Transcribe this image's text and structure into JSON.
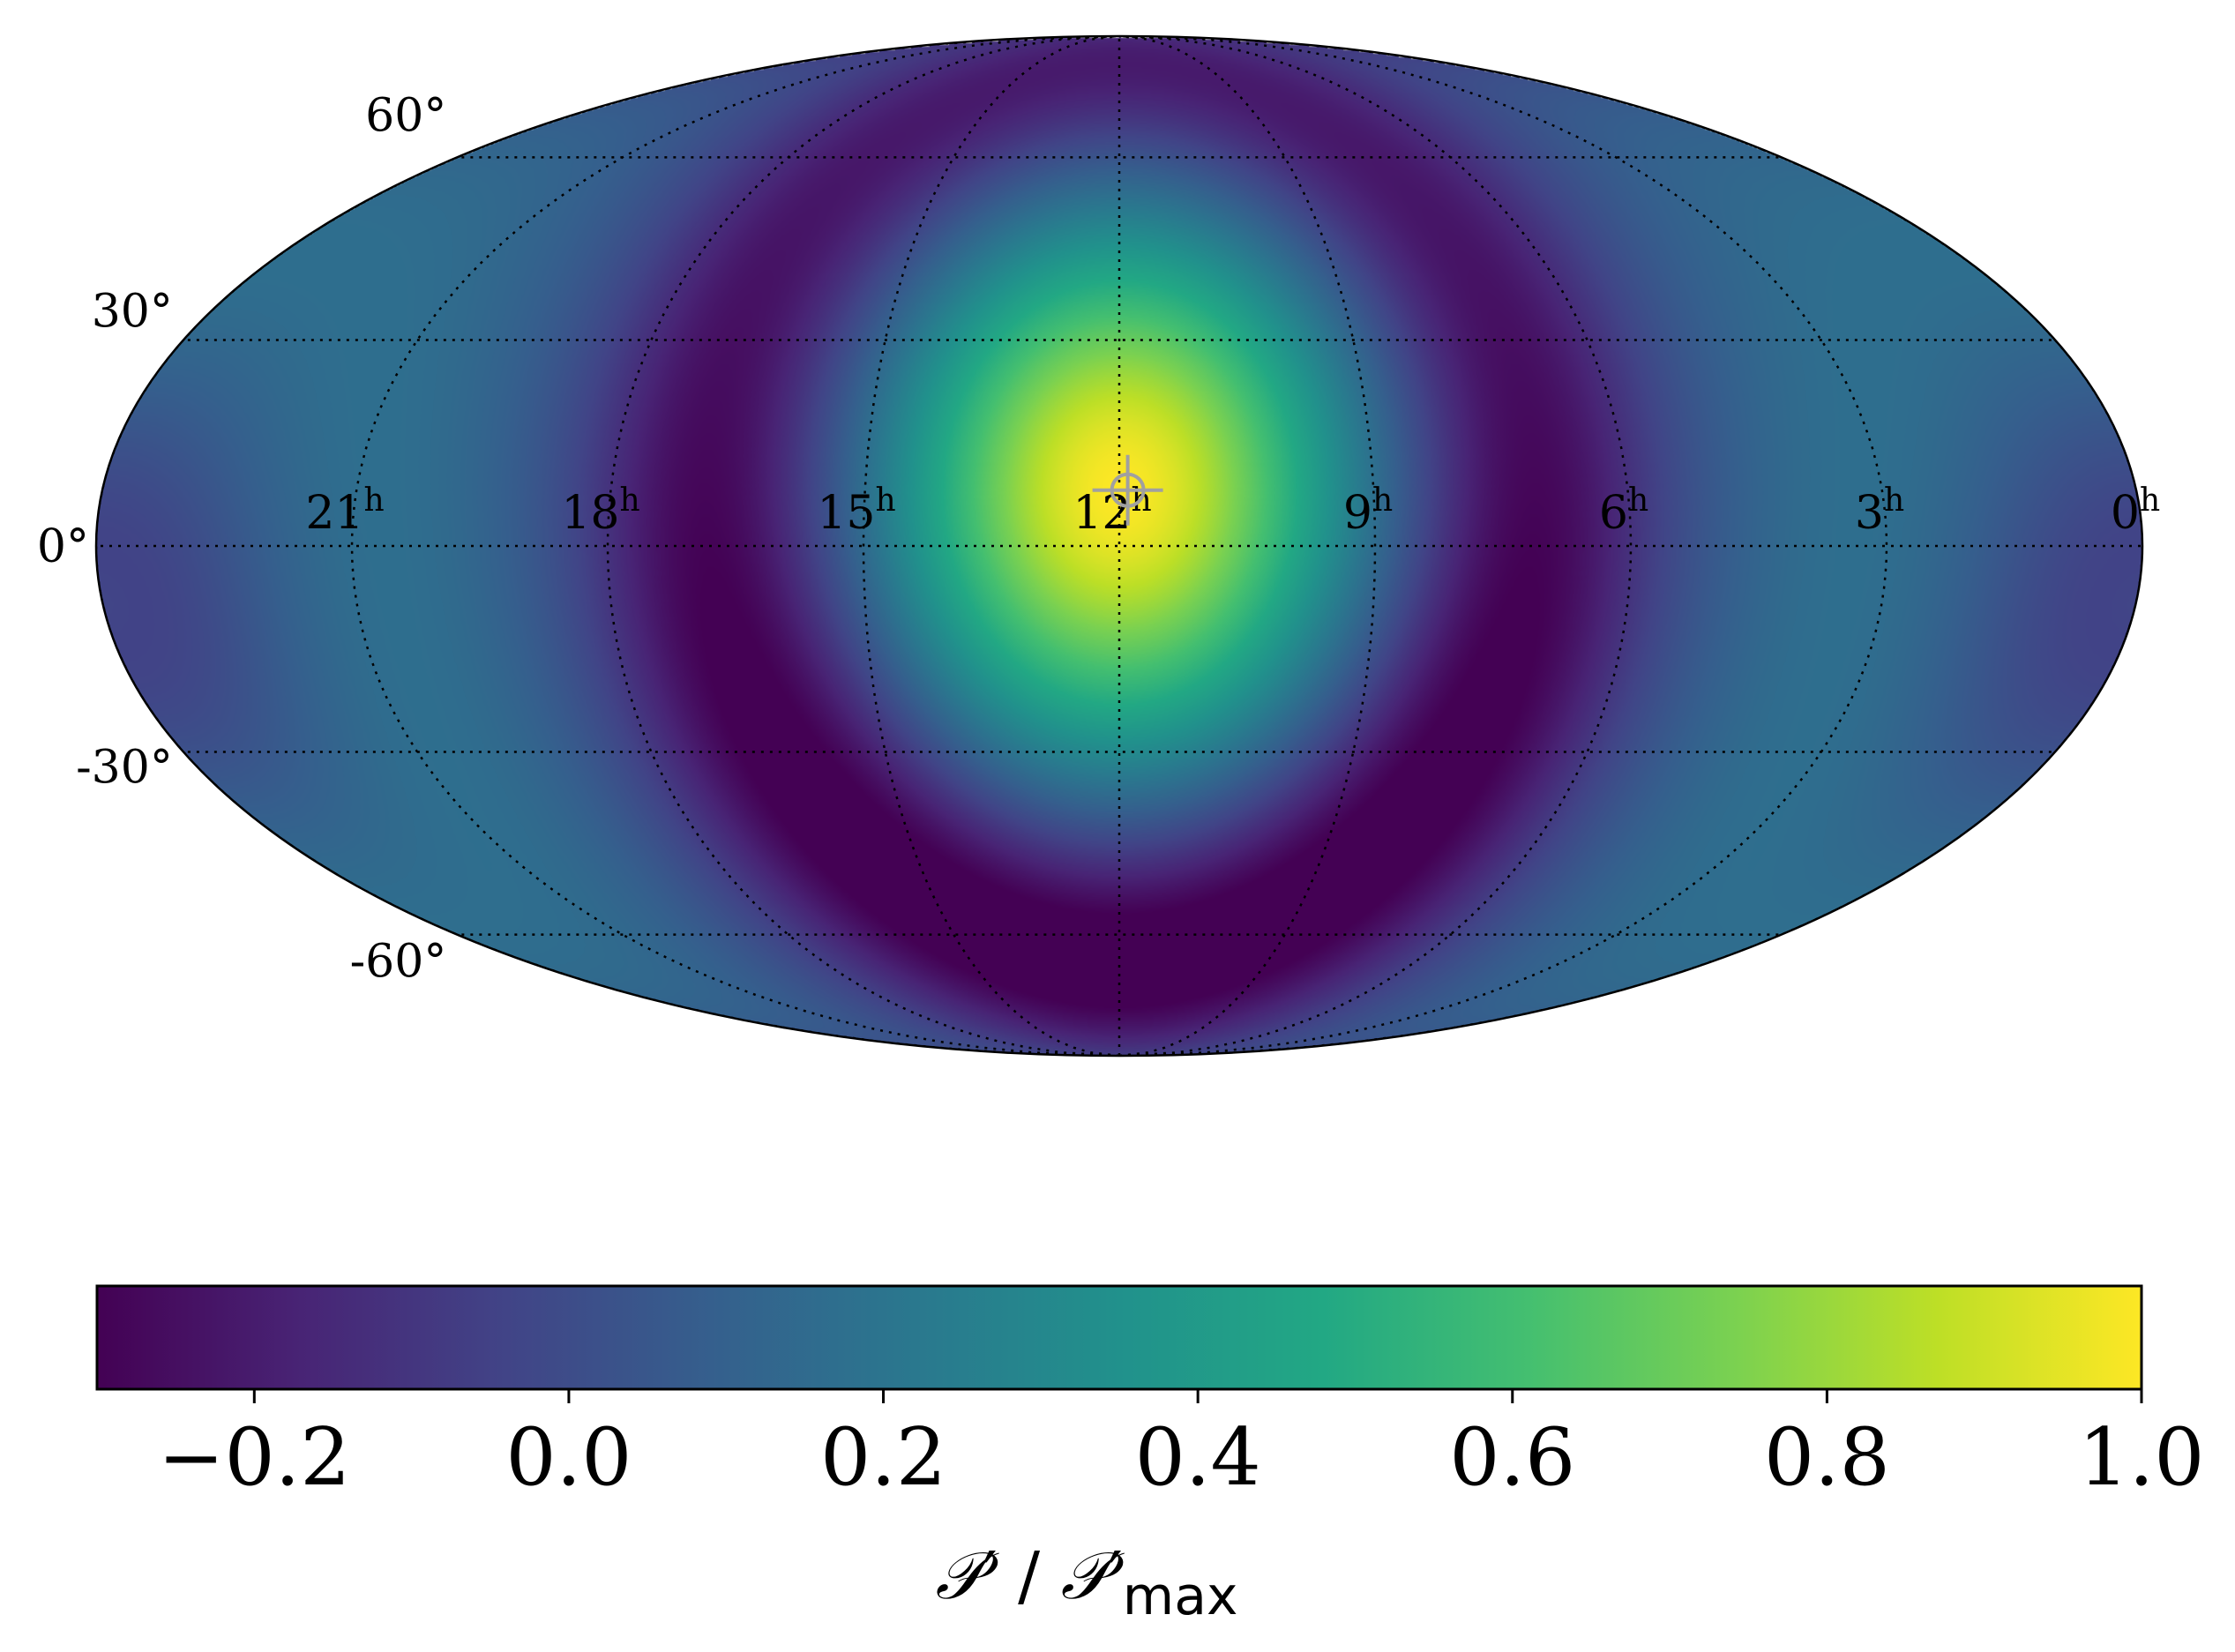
{
  "chart_data": {
    "type": "heatmap",
    "projection": "mollweide",
    "colormap": "viridis",
    "colorbar": {
      "orientation": "horizontal",
      "range": [
        -0.3,
        1.0
      ],
      "ticks": [
        -0.2,
        0.0,
        0.2,
        0.4,
        0.6,
        0.8,
        1.0
      ],
      "tick_labels": [
        "−0.2",
        "0.0",
        "0.2",
        "0.4",
        "0.6",
        "0.8",
        "1.0"
      ],
      "label": {
        "script_p": "𝒫",
        "prime": "′",
        "separator": " / ",
        "subscript": "max"
      }
    },
    "ra_labels": [
      {
        "hours": 21,
        "text": "21",
        "sup": "h"
      },
      {
        "hours": 18,
        "text": "18",
        "sup": "h"
      },
      {
        "hours": 15,
        "text": "15",
        "sup": "h"
      },
      {
        "hours": 12,
        "text": "12",
        "sup": "h"
      },
      {
        "hours": 9,
        "text": "9",
        "sup": "h"
      },
      {
        "hours": 6,
        "text": "6",
        "sup": "h"
      },
      {
        "hours": 3,
        "text": "3",
        "sup": "h"
      },
      {
        "hours": 0,
        "text": "0",
        "sup": "h"
      }
    ],
    "dec_labels": [
      {
        "deg": 60,
        "text": "60°"
      },
      {
        "deg": 30,
        "text": "30°"
      },
      {
        "deg": 0,
        "text": "0°"
      },
      {
        "deg": -30,
        "text": "-30°"
      },
      {
        "deg": -60,
        "text": "-60°"
      }
    ],
    "grid": {
      "style": "dotted",
      "meridians_hours": [
        24,
        21,
        18,
        15,
        12,
        9,
        6,
        3,
        0
      ],
      "parallels_deg": [
        -60,
        -30,
        0,
        30,
        60
      ]
    },
    "marker": {
      "ra_hours": 11.9,
      "dec_deg": 8,
      "symbol": "crosshair-circle",
      "color": "#a0a0a0"
    },
    "field": {
      "peak": {
        "ra_hours": 12,
        "dec_deg": 8,
        "value": 1.0
      },
      "minimum": {
        "ra_hours": 15.5,
        "dec_deg": -50,
        "value": -0.3
      },
      "description_values": "dipole-like pattern peaking at ~1.0 near RA 12h, Dec +8°, surrounded by a ring of minima ~-0.3"
    }
  }
}
